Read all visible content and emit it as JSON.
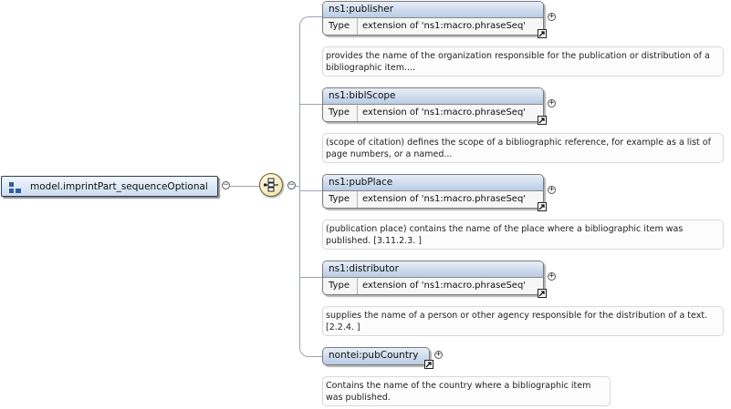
{
  "colors": {
    "connector": "#9aa4b0",
    "accent": "#2d5f9e"
  },
  "root": {
    "label": "model.imprintPart_sequenceOptional",
    "icon": "model-group-icon",
    "collapse_symbol": "−"
  },
  "compositor": {
    "icon": "sequence-icon",
    "collapse_symbol": "−"
  },
  "type_key": "Type",
  "expand_symbol": "+",
  "elements": [
    {
      "name": "ns1:publisher",
      "type_value": "extension of 'ns1:macro.phraseSeq'",
      "doc": "provides the name of the organization responsible for the publication or distribution of a bibliographic item...."
    },
    {
      "name": "ns1:biblScope",
      "type_value": "extension of 'ns1:macro.phraseSeq'",
      "doc": "(scope of citation) defines the scope of a bibliographic reference, for example as a list of page numbers, or a named..."
    },
    {
      "name": "ns1:pubPlace",
      "type_value": "extension of 'ns1:macro.phraseSeq'",
      "doc": "(publication place) contains the name of the place where a bibliographic item was published. [3.11.2.3. ]"
    },
    {
      "name": "ns1:distributor",
      "type_value": "extension of 'ns1:macro.phraseSeq'",
      "doc": "supplies the name of a person or other agency responsible for the distribution of a text. [2.2.4. ]"
    },
    {
      "name": "nontei:pubCountry",
      "doc": "Contains the name of the country where a bibliographic item was published."
    }
  ]
}
